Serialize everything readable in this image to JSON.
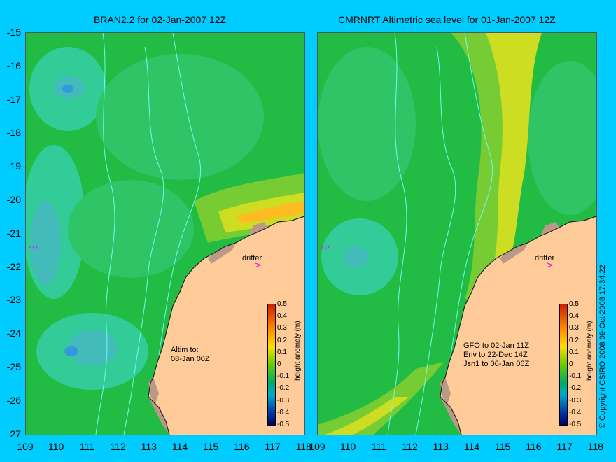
{
  "left": {
    "title": "BRAN2.2 for 02-Jan-2007 12Z",
    "drifter_label": "drifter",
    "note_lines": [
      "Altim to:",
      "08-Jan 00Z"
    ]
  },
  "right": {
    "title": "CMRNRT Altimetric sea level  for 01-Jan-2007 12Z",
    "drifter_label": "drifter",
    "note_lines": [
      "GFO to 02-Jan 11Z",
      "Env to 22-Dec 14Z",
      "Jsn1 to 06-Jan 06Z"
    ]
  },
  "y_axis_labels": [
    "-15",
    "-16",
    "-17",
    "-18",
    "-19",
    "-20",
    "-21",
    "-22",
    "-23",
    "-24",
    "-25",
    "-26",
    "-27"
  ],
  "x_axis_labels": [
    "109",
    "110",
    "111",
    "112",
    "113",
    "114",
    "115",
    "116",
    "117",
    "118"
  ],
  "colorbar": {
    "label": "height anomaly (m)",
    "ticks": [
      "0.5",
      "0.4",
      "0.3",
      "0.2",
      "0.1",
      "0",
      "-0.1",
      "-0.2",
      "-0.3",
      "-0.4",
      "-0.5"
    ]
  },
  "copyright": "© Copyright CSIRO 2008   09-Oct-2008 17:34:22",
  "colors": {
    "background": "#00ccff",
    "land": "#ffcc99",
    "ocean_green": "#22bb44",
    "drifter": "#ff00ff"
  }
}
